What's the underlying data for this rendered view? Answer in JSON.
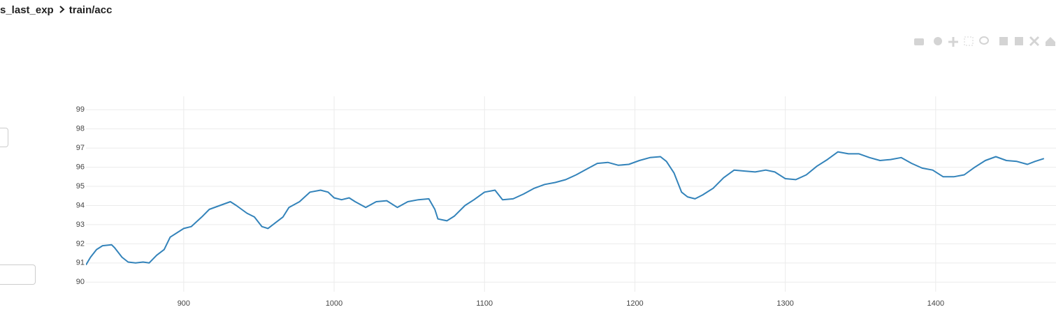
{
  "breadcrumb": [
    "s_last_exp",
    "train/acc"
  ],
  "chart_data": {
    "type": "line",
    "color": "#3383ba",
    "grid": true,
    "xlim": [
      835,
      1480
    ],
    "ylim": [
      89.5,
      99.7
    ],
    "xticks": [
      900,
      1000,
      1100,
      1200,
      1300,
      1400
    ],
    "yticks": [
      90,
      91,
      92,
      93,
      94,
      95,
      96,
      97,
      98,
      99
    ],
    "x": [
      835,
      838,
      842,
      846,
      852,
      854,
      859,
      863,
      868,
      873,
      877,
      882,
      887,
      891,
      896,
      900,
      905,
      912,
      917,
      924,
      931,
      935,
      942,
      947,
      952,
      956,
      961,
      966,
      970,
      977,
      984,
      991,
      996,
      1000,
      1005,
      1010,
      1014,
      1021,
      1028,
      1035,
      1042,
      1049,
      1056,
      1063,
      1067,
      1069,
      1075,
      1080,
      1087,
      1093,
      1100,
      1107,
      1112,
      1119,
      1126,
      1133,
      1140,
      1147,
      1154,
      1161,
      1168,
      1175,
      1182,
      1189,
      1196,
      1203,
      1210,
      1217,
      1221,
      1226,
      1231,
      1235,
      1240,
      1245,
      1252,
      1259,
      1266,
      1273,
      1280,
      1287,
      1293,
      1300,
      1307,
      1314,
      1321,
      1328,
      1335,
      1342,
      1349,
      1356,
      1363,
      1370,
      1377,
      1384,
      1391,
      1398,
      1405,
      1412,
      1419,
      1426,
      1433,
      1440,
      1447,
      1454,
      1461,
      1466,
      1472
    ],
    "values": [
      90.9,
      91.3,
      91.7,
      91.9,
      91.95,
      91.8,
      91.3,
      91.05,
      91.0,
      91.05,
      91.0,
      91.4,
      91.7,
      92.35,
      92.6,
      92.8,
      92.9,
      93.4,
      93.8,
      94.0,
      94.2,
      94.0,
      93.6,
      93.4,
      92.9,
      92.8,
      93.1,
      93.4,
      93.9,
      94.2,
      94.7,
      94.8,
      94.7,
      94.4,
      94.3,
      94.4,
      94.2,
      93.9,
      94.2,
      94.25,
      93.9,
      94.2,
      94.3,
      94.35,
      93.8,
      93.3,
      93.2,
      93.45,
      94.0,
      94.3,
      94.7,
      94.8,
      94.3,
      94.35,
      94.6,
      94.9,
      95.1,
      95.2,
      95.35,
      95.6,
      95.9,
      96.2,
      96.25,
      96.1,
      96.15,
      96.35,
      96.5,
      96.55,
      96.3,
      95.7,
      94.7,
      94.45,
      94.35,
      94.55,
      94.9,
      95.45,
      95.85,
      95.8,
      95.75,
      95.85,
      95.75,
      95.4,
      95.35,
      95.6,
      96.05,
      96.4,
      96.8,
      96.7,
      96.7,
      96.5,
      96.35,
      96.4,
      96.5,
      96.2,
      95.95,
      95.85,
      95.5,
      95.5,
      95.6,
      96.0,
      96.35,
      96.55,
      96.35,
      96.3,
      96.15,
      96.3,
      96.45
    ]
  }
}
